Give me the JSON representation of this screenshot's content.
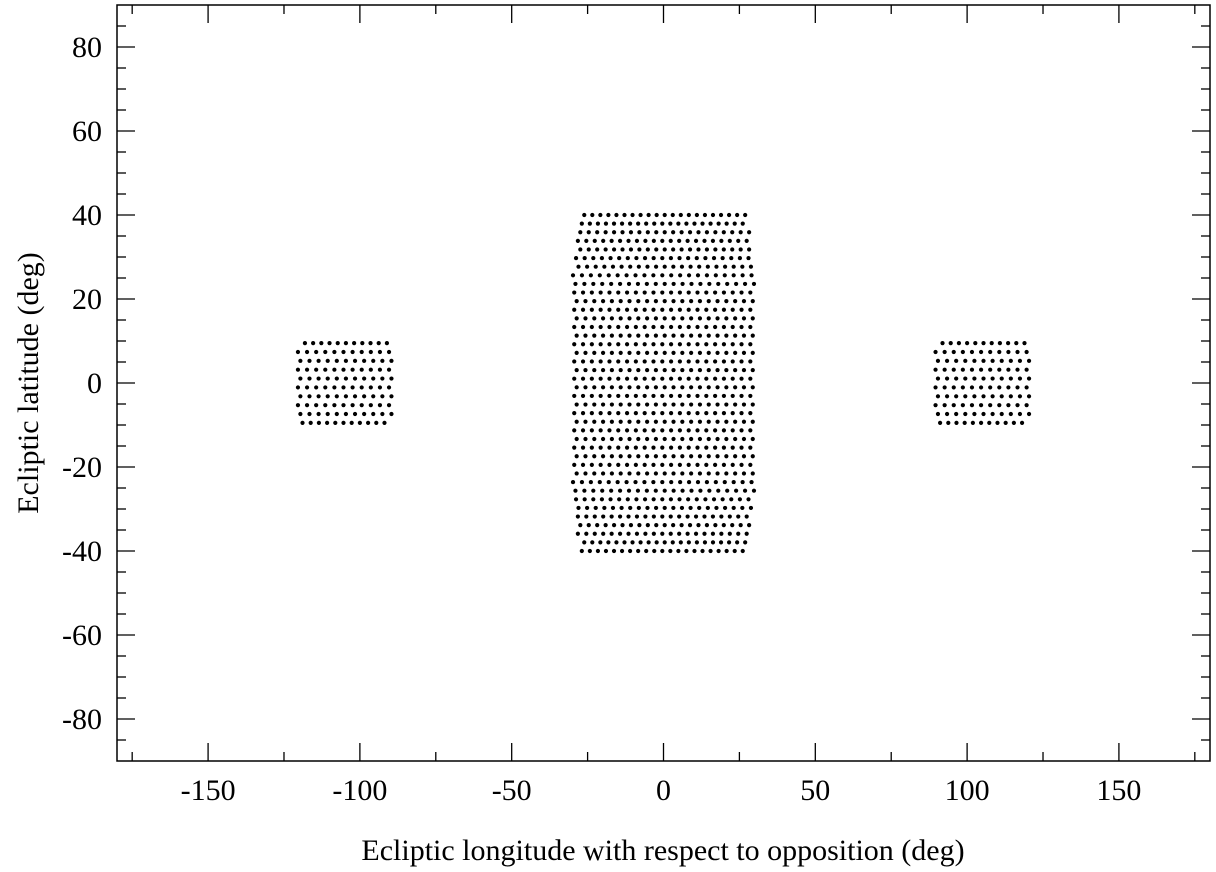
{
  "chart_data": {
    "type": "scatter",
    "title": "",
    "xlabel": "Ecliptic longitude with respect to opposition (deg)",
    "ylabel": "Ecliptic latitude (deg)",
    "xlim": [
      -180,
      180
    ],
    "ylim": [
      -90,
      90
    ],
    "x_ticks": [
      "-150",
      "-100",
      "-50",
      "0",
      "50",
      "100",
      "150"
    ],
    "y_ticks": [
      "80",
      "60",
      "40",
      "20",
      "0",
      "-20",
      "-40",
      "-60",
      "-80"
    ],
    "grid": false,
    "marker_color": "#000000",
    "regions": [
      {
        "name": "",
        "lon_range": [
          -120,
          -90
        ],
        "lat_range": [
          -9.5,
          9.5
        ],
        "rows": 10,
        "cols": 11
      },
      {
        "name": "",
        "lon_range": [
          -29,
          29
        ],
        "lat_range": [
          -40,
          40
        ],
        "rows": 40,
        "cols": 21
      },
      {
        "name": "",
        "lon_range": [
          90,
          120
        ],
        "lat_range": [
          -9.5,
          9.5
        ],
        "rows": 10,
        "cols": 11
      }
    ]
  }
}
